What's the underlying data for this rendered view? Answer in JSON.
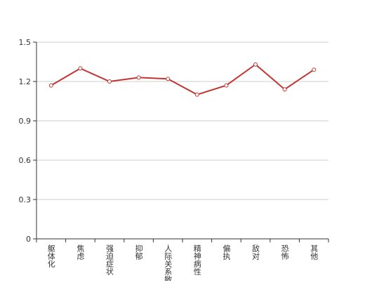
{
  "chart_data": {
    "type": "line",
    "categories": [
      "躯体化",
      "焦虑",
      "强迫症状",
      "抑郁",
      "人际关系敏感",
      "精神病性",
      "偏执",
      "敌对",
      "恐怖",
      "其他"
    ],
    "values": [
      1.17,
      1.3,
      1.2,
      1.23,
      1.22,
      1.1,
      1.17,
      1.33,
      1.14,
      1.29
    ],
    "color": "#c23531",
    "ylim": [
      0,
      1.5
    ],
    "yticks": [
      0,
      0.3,
      0.6,
      0.9,
      1.2,
      1.5
    ],
    "grid": true
  }
}
